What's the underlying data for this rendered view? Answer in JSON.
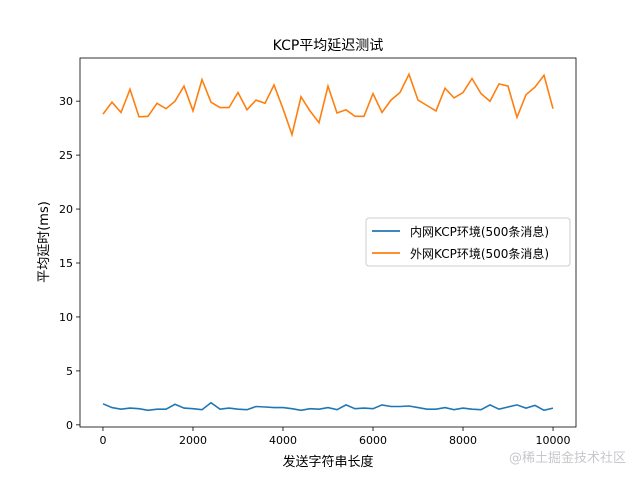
{
  "watermark": "@稀土掘金技术社区",
  "chart_data": {
    "type": "line",
    "title": "KCP平均延迟测试",
    "xlabel": "发送字符串长度",
    "ylabel": "平均延时(ms)",
    "xlim": [
      -510,
      10510
    ],
    "ylim": [
      -0.2,
      34
    ],
    "xticks": [
      0,
      2000,
      4000,
      6000,
      8000,
      10000
    ],
    "yticks": [
      0,
      5,
      10,
      15,
      20,
      25,
      30
    ],
    "grid": false,
    "legend_placement": "center-right",
    "x": [
      0,
      200,
      400,
      600,
      800,
      1000,
      1200,
      1400,
      1600,
      1800,
      2000,
      2200,
      2400,
      2600,
      2800,
      3000,
      3200,
      3400,
      3600,
      3800,
      4000,
      4200,
      4400,
      4600,
      4800,
      5000,
      5200,
      5400,
      5600,
      5800,
      6000,
      6200,
      6400,
      6600,
      6800,
      7000,
      7200,
      7400,
      7600,
      7800,
      8000,
      8200,
      8400,
      8600,
      8800,
      9000,
      9200,
      9400,
      9600,
      9800,
      10000
    ],
    "series": [
      {
        "name": "内网KCP环境(500条消息)",
        "color": "#1f77b4",
        "values": [
          1.95,
          1.6,
          1.45,
          1.55,
          1.5,
          1.35,
          1.45,
          1.45,
          1.9,
          1.55,
          1.5,
          1.4,
          2.05,
          1.45,
          1.55,
          1.45,
          1.4,
          1.7,
          1.65,
          1.6,
          1.6,
          1.5,
          1.35,
          1.5,
          1.45,
          1.6,
          1.4,
          1.85,
          1.5,
          1.55,
          1.5,
          1.85,
          1.7,
          1.7,
          1.75,
          1.6,
          1.45,
          1.45,
          1.6,
          1.4,
          1.55,
          1.45,
          1.4,
          1.85,
          1.45,
          1.65,
          1.85,
          1.55,
          1.8,
          1.35,
          1.55
        ]
      },
      {
        "name": "外网KCP环境(500条消息)",
        "color": "#ff7f0e",
        "values": [
          28.8,
          29.9,
          28.95,
          31.1,
          28.55,
          28.6,
          29.8,
          29.3,
          30.0,
          31.4,
          29.1,
          32.0,
          29.9,
          29.4,
          29.4,
          30.8,
          29.2,
          30.1,
          29.8,
          31.5,
          29.3,
          26.9,
          30.4,
          29.1,
          28.0,
          31.4,
          28.9,
          29.2,
          28.6,
          28.6,
          30.7,
          28.95,
          30.1,
          30.8,
          32.5,
          30.1,
          29.6,
          29.1,
          31.2,
          30.3,
          30.8,
          32.1,
          30.7,
          30.0,
          31.6,
          31.4,
          28.5,
          30.6,
          31.3,
          32.4,
          29.3
        ]
      }
    ]
  }
}
